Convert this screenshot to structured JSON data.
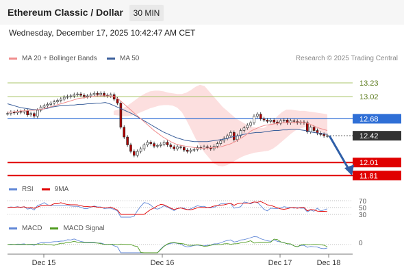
{
  "header": {
    "title": "Ethereum Classic / Dollar",
    "timeframe": "30 MIN"
  },
  "datetime": "Wednesday, December 17, 2025 10:42:47 AM CET",
  "legend": {
    "ma20_label": "MA 20 + Bollinger Bands",
    "ma50_label": "MA 50",
    "copyright": "Research © 2025 Trading Central"
  },
  "colors": {
    "ma20": "#f08c8c",
    "ma50": "#3a5e9a",
    "bands": "#fbd9d9",
    "resistance": "#a9c46a",
    "support": "#e00000",
    "pivot": "#2f6fd6",
    "current": "#333333",
    "rsi": "#5f86d6",
    "rsi_ma": "#e00000",
    "macd": "#5f86d6",
    "macd_signal": "#4e9a1e"
  },
  "chart_data": {
    "type": "candlestick",
    "x_ticks": [
      "Dec 15",
      "Dec 16",
      "Dec 17",
      "Dec 18"
    ],
    "price_levels": [
      {
        "label": "13.23",
        "value": 13.23,
        "kind": "resistance"
      },
      {
        "label": "13.02",
        "value": 13.02,
        "kind": "resistance"
      },
      {
        "label": "12.68",
        "value": 12.68,
        "kind": "pivot"
      },
      {
        "label": "12.42",
        "value": 12.42,
        "kind": "current"
      },
      {
        "label": "12.01",
        "value": 12.01,
        "kind": "support"
      },
      {
        "label": "11.81",
        "value": 11.81,
        "kind": "support"
      }
    ],
    "ylim": [
      11.75,
      13.45
    ],
    "close": [
      12.76,
      12.78,
      12.77,
      12.79,
      12.78,
      12.8,
      12.74,
      12.76,
      12.72,
      12.81,
      12.86,
      12.88,
      12.9,
      12.92,
      12.94,
      12.96,
      12.98,
      13.01,
      13.02,
      13.03,
      13.05,
      13.06,
      13.04,
      13.02,
      13.03,
      13.05,
      13.07,
      13.05,
      13.07,
      13.04,
      13.03,
      13.05,
      12.98,
      12.92,
      12.55,
      12.4,
      12.28,
      12.18,
      12.12,
      12.18,
      12.22,
      12.28,
      12.32,
      12.3,
      12.26,
      12.27,
      12.29,
      12.32,
      12.28,
      12.25,
      12.22,
      12.25,
      12.24,
      12.2,
      12.18,
      12.2,
      12.21,
      12.24,
      12.23,
      12.25,
      12.24,
      12.22,
      12.26,
      12.3,
      12.34,
      12.38,
      12.42,
      12.47,
      12.36,
      12.42,
      12.5,
      12.54,
      12.58,
      12.62,
      12.72,
      12.75,
      12.68,
      12.66,
      12.64,
      12.66,
      12.63,
      12.61,
      12.65,
      12.66,
      12.62,
      12.65,
      12.64,
      12.62,
      12.63,
      12.62,
      12.48,
      12.55,
      12.5,
      12.46,
      12.44,
      12.42,
      12.42
    ],
    "ma20": [
      12.78,
      12.78,
      12.79,
      12.8,
      12.8,
      12.81,
      12.81,
      12.82,
      12.83,
      12.85,
      12.87,
      12.89,
      12.91,
      12.93,
      12.95,
      12.97,
      12.99,
      13.0,
      13.01,
      13.02,
      13.03,
      13.03,
      13.03,
      13.03,
      13.02,
      12.98,
      12.92,
      12.86,
      12.8,
      12.74,
      12.68,
      12.62,
      12.56,
      12.5,
      12.45,
      12.4,
      12.36,
      12.32,
      12.29,
      12.27,
      12.26,
      12.25,
      12.24,
      12.23,
      12.23,
      12.23,
      12.24,
      12.24,
      12.25,
      12.27,
      12.29,
      12.32,
      12.36,
      12.4,
      12.45,
      12.5,
      12.53,
      12.56,
      12.58,
      12.59,
      12.6,
      12.61,
      12.62,
      12.62,
      12.62,
      12.63,
      12.63,
      12.62,
      12.6,
      12.57,
      12.54,
      12.52,
      12.5
    ],
    "ma50": [
      12.91,
      12.89,
      12.87,
      12.85,
      12.84,
      12.83,
      12.82,
      12.82,
      12.83,
      12.84,
      12.86,
      12.87,
      12.88,
      12.88,
      12.89,
      12.89,
      12.9,
      12.9,
      12.91,
      12.91,
      12.92,
      12.92,
      12.93,
      12.91,
      12.88,
      12.85,
      12.82,
      12.79,
      12.76,
      12.72,
      12.68,
      12.64,
      12.6,
      12.56,
      12.52,
      12.48,
      12.45,
      12.42,
      12.39,
      12.37,
      12.35,
      12.34,
      12.33,
      12.33,
      12.33,
      12.33,
      12.34,
      12.35,
      12.36,
      12.37,
      12.39,
      12.41,
      12.42,
      12.44,
      12.45,
      12.46,
      12.47,
      12.47,
      12.48,
      12.49,
      12.5,
      12.5,
      12.51,
      12.51,
      12.52,
      12.52,
      12.51,
      12.5,
      12.48,
      12.47,
      12.46,
      12.45,
      12.44
    ],
    "bollinger_upper": [
      12.8,
      12.82,
      12.84,
      12.88,
      12.93,
      12.98,
      13.03,
      13.07,
      13.1,
      13.11,
      13.11,
      13.1,
      13.08,
      13.07,
      13.06,
      13.06,
      13.08,
      13.12,
      13.17,
      13.2,
      13.18,
      13.1,
      13.02,
      12.94,
      12.86,
      12.8,
      12.74,
      12.68,
      12.64,
      12.6,
      12.56,
      12.55,
      12.54,
      12.54,
      12.58,
      12.64,
      12.72,
      12.78,
      12.82,
      12.82,
      12.81,
      12.8,
      12.8,
      12.79,
      12.78,
      12.77,
      12.76,
      12.75
    ],
    "bollinger_lower": [
      12.74,
      12.73,
      12.72,
      12.72,
      12.73,
      12.75,
      12.78,
      12.81,
      12.84,
      12.86,
      12.88,
      12.89,
      12.89,
      12.88,
      12.85,
      12.78,
      12.66,
      12.52,
      12.38,
      12.26,
      12.16,
      12.08,
      12.0,
      11.96,
      11.95,
      11.97,
      12.01,
      12.05,
      12.09,
      12.12,
      12.14,
      12.16,
      12.17,
      12.18,
      12.19,
      12.22,
      12.27,
      12.33,
      12.39,
      12.45,
      12.5,
      12.53,
      12.55,
      12.55,
      12.54,
      12.5,
      12.46,
      12.42
    ],
    "projection": {
      "from": 12.42,
      "to": 11.81
    },
    "rsi": {
      "levels": [
        30,
        50,
        70
      ],
      "tick_labels": [
        "70",
        "50",
        "30"
      ],
      "legend": [
        "RSI",
        "9MA"
      ]
    },
    "macd": {
      "zero_label": "0",
      "legend": [
        "MACD",
        "MACD Signal"
      ]
    }
  }
}
